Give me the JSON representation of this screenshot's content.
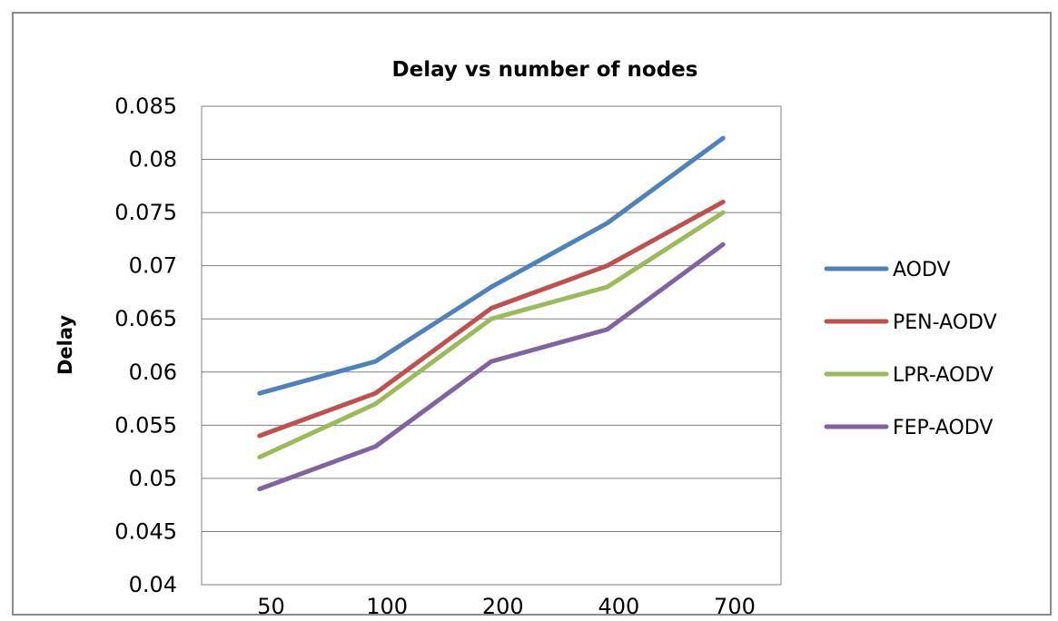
{
  "chart_data": {
    "type": "line",
    "title": "Delay vs number of nodes",
    "xlabel": "",
    "ylabel": "Delay",
    "categories": [
      "50",
      "100",
      "200",
      "400",
      "700"
    ],
    "y_tick_labels": [
      "0.085",
      "0.08",
      "0.075",
      "0.07",
      "0.065",
      "0.06",
      "0.055",
      "0.05",
      "0.045",
      "0.04"
    ],
    "ylim": [
      0.04,
      0.085
    ],
    "ytick_step": 0.005,
    "grid": "horizontal major gridlines",
    "legend_position": "right",
    "point_positions": [
      0.5,
      1.5,
      2.5,
      3.5,
      4.5
    ],
    "series": [
      {
        "name": "AODV",
        "color": "#4f81bd",
        "values": [
          0.058,
          0.061,
          0.068,
          0.074,
          0.082
        ]
      },
      {
        "name": "PEN-AODV",
        "color": "#c0504d",
        "values": [
          0.054,
          0.058,
          0.066,
          0.07,
          0.076
        ]
      },
      {
        "name": "LPR-AODV",
        "color": "#9bbb59",
        "values": [
          0.052,
          0.057,
          0.065,
          0.068,
          0.075
        ]
      },
      {
        "name": "FEP-AODV",
        "color": "#8064a2",
        "values": [
          0.049,
          0.053,
          0.061,
          0.064,
          0.072
        ]
      }
    ]
  }
}
